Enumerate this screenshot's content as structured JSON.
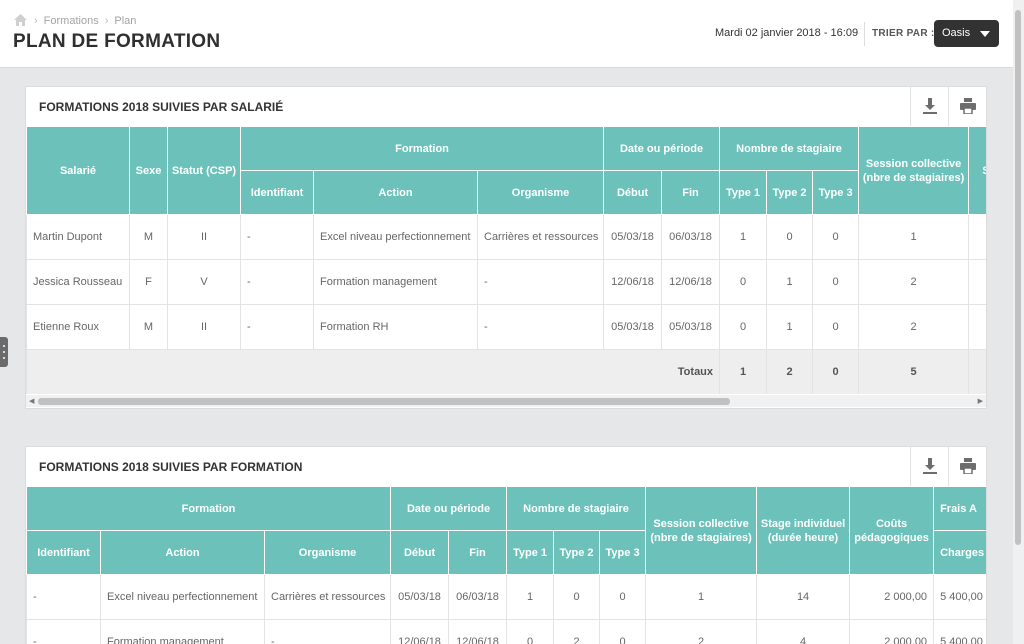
{
  "breadcrumb": [
    "Formations",
    "Plan"
  ],
  "page_title": "PLAN DE FORMATION",
  "date": "Mardi 02 janvier 2018 - 16:09",
  "sort": {
    "label": "TRIER PAR :",
    "value": "Oasis"
  },
  "icons": [
    "home-icon",
    "download-icon",
    "print-icon",
    "chevron-right-icon",
    "caret-down-icon"
  ],
  "colors": {
    "header": "#6cc2bb",
    "title": "#2f2f2f",
    "select_bg": "#323232"
  },
  "panel1": {
    "title": "FORMATIONS 2018 SUIVIES PAR SALARIÉ",
    "groups": [
      "Formation",
      "Date ou période",
      "Nombre de stagiaire"
    ],
    "headers": {
      "salarie": "Salarié",
      "sexe": "Sexe",
      "statut": "Statut (CSP)",
      "identifiant": "Identifiant",
      "action": "Action",
      "organisme": "Organisme",
      "debut": "Début",
      "fin": "Fin",
      "type1": "Type 1",
      "type2": "Type 2",
      "type3": "Type 3",
      "session": "Session collective (nbre de stagiaires)",
      "cut": "Sta (d"
    },
    "rows": [
      [
        "Martin Dupont",
        "M",
        "II",
        "-",
        "Excel niveau perfectionnement",
        "Carrières et ressources",
        "05/03/18",
        "06/03/18",
        "1",
        "0",
        "0",
        "1"
      ],
      [
        "Jessica Rousseau",
        "F",
        "V",
        "-",
        "Formation management",
        "-",
        "12/06/18",
        "12/06/18",
        "0",
        "1",
        "0",
        "2"
      ],
      [
        "Etienne Roux",
        "M",
        "II",
        "-",
        "Formation RH",
        "-",
        "05/03/18",
        "05/03/18",
        "0",
        "1",
        "0",
        "2"
      ]
    ],
    "totals": {
      "label": "Totaux",
      "type1": "1",
      "type2": "2",
      "type3": "0",
      "session": "5"
    }
  },
  "panel2": {
    "title": "FORMATIONS 2018 SUIVIES PAR FORMATION",
    "groups": [
      "Formation",
      "Date ou période",
      "Nombre de stagiaire",
      "Frais A"
    ],
    "headers": {
      "identifiant": "Identifiant",
      "action": "Action",
      "organisme": "Organisme",
      "debut": "Début",
      "fin": "Fin",
      "type1": "Type 1",
      "type2": "Type 2",
      "type3": "Type 3",
      "session": "Session collective (nbre de stagiaires)",
      "stage": "Stage individuel (durée heure)",
      "couts": "Coûts pédagogiques",
      "charges": "Charges"
    },
    "rows": [
      [
        "-",
        "Excel niveau perfectionnement",
        "Carrières et ressources",
        "05/03/18",
        "06/03/18",
        "1",
        "0",
        "0",
        "1",
        "14",
        "2 000,00",
        "5 400,00"
      ],
      [
        "-",
        "Formation management",
        "-",
        "12/06/18",
        "12/06/18",
        "0",
        "2",
        "0",
        "2",
        "4",
        "2 000,00",
        "5 400,00"
      ]
    ]
  }
}
